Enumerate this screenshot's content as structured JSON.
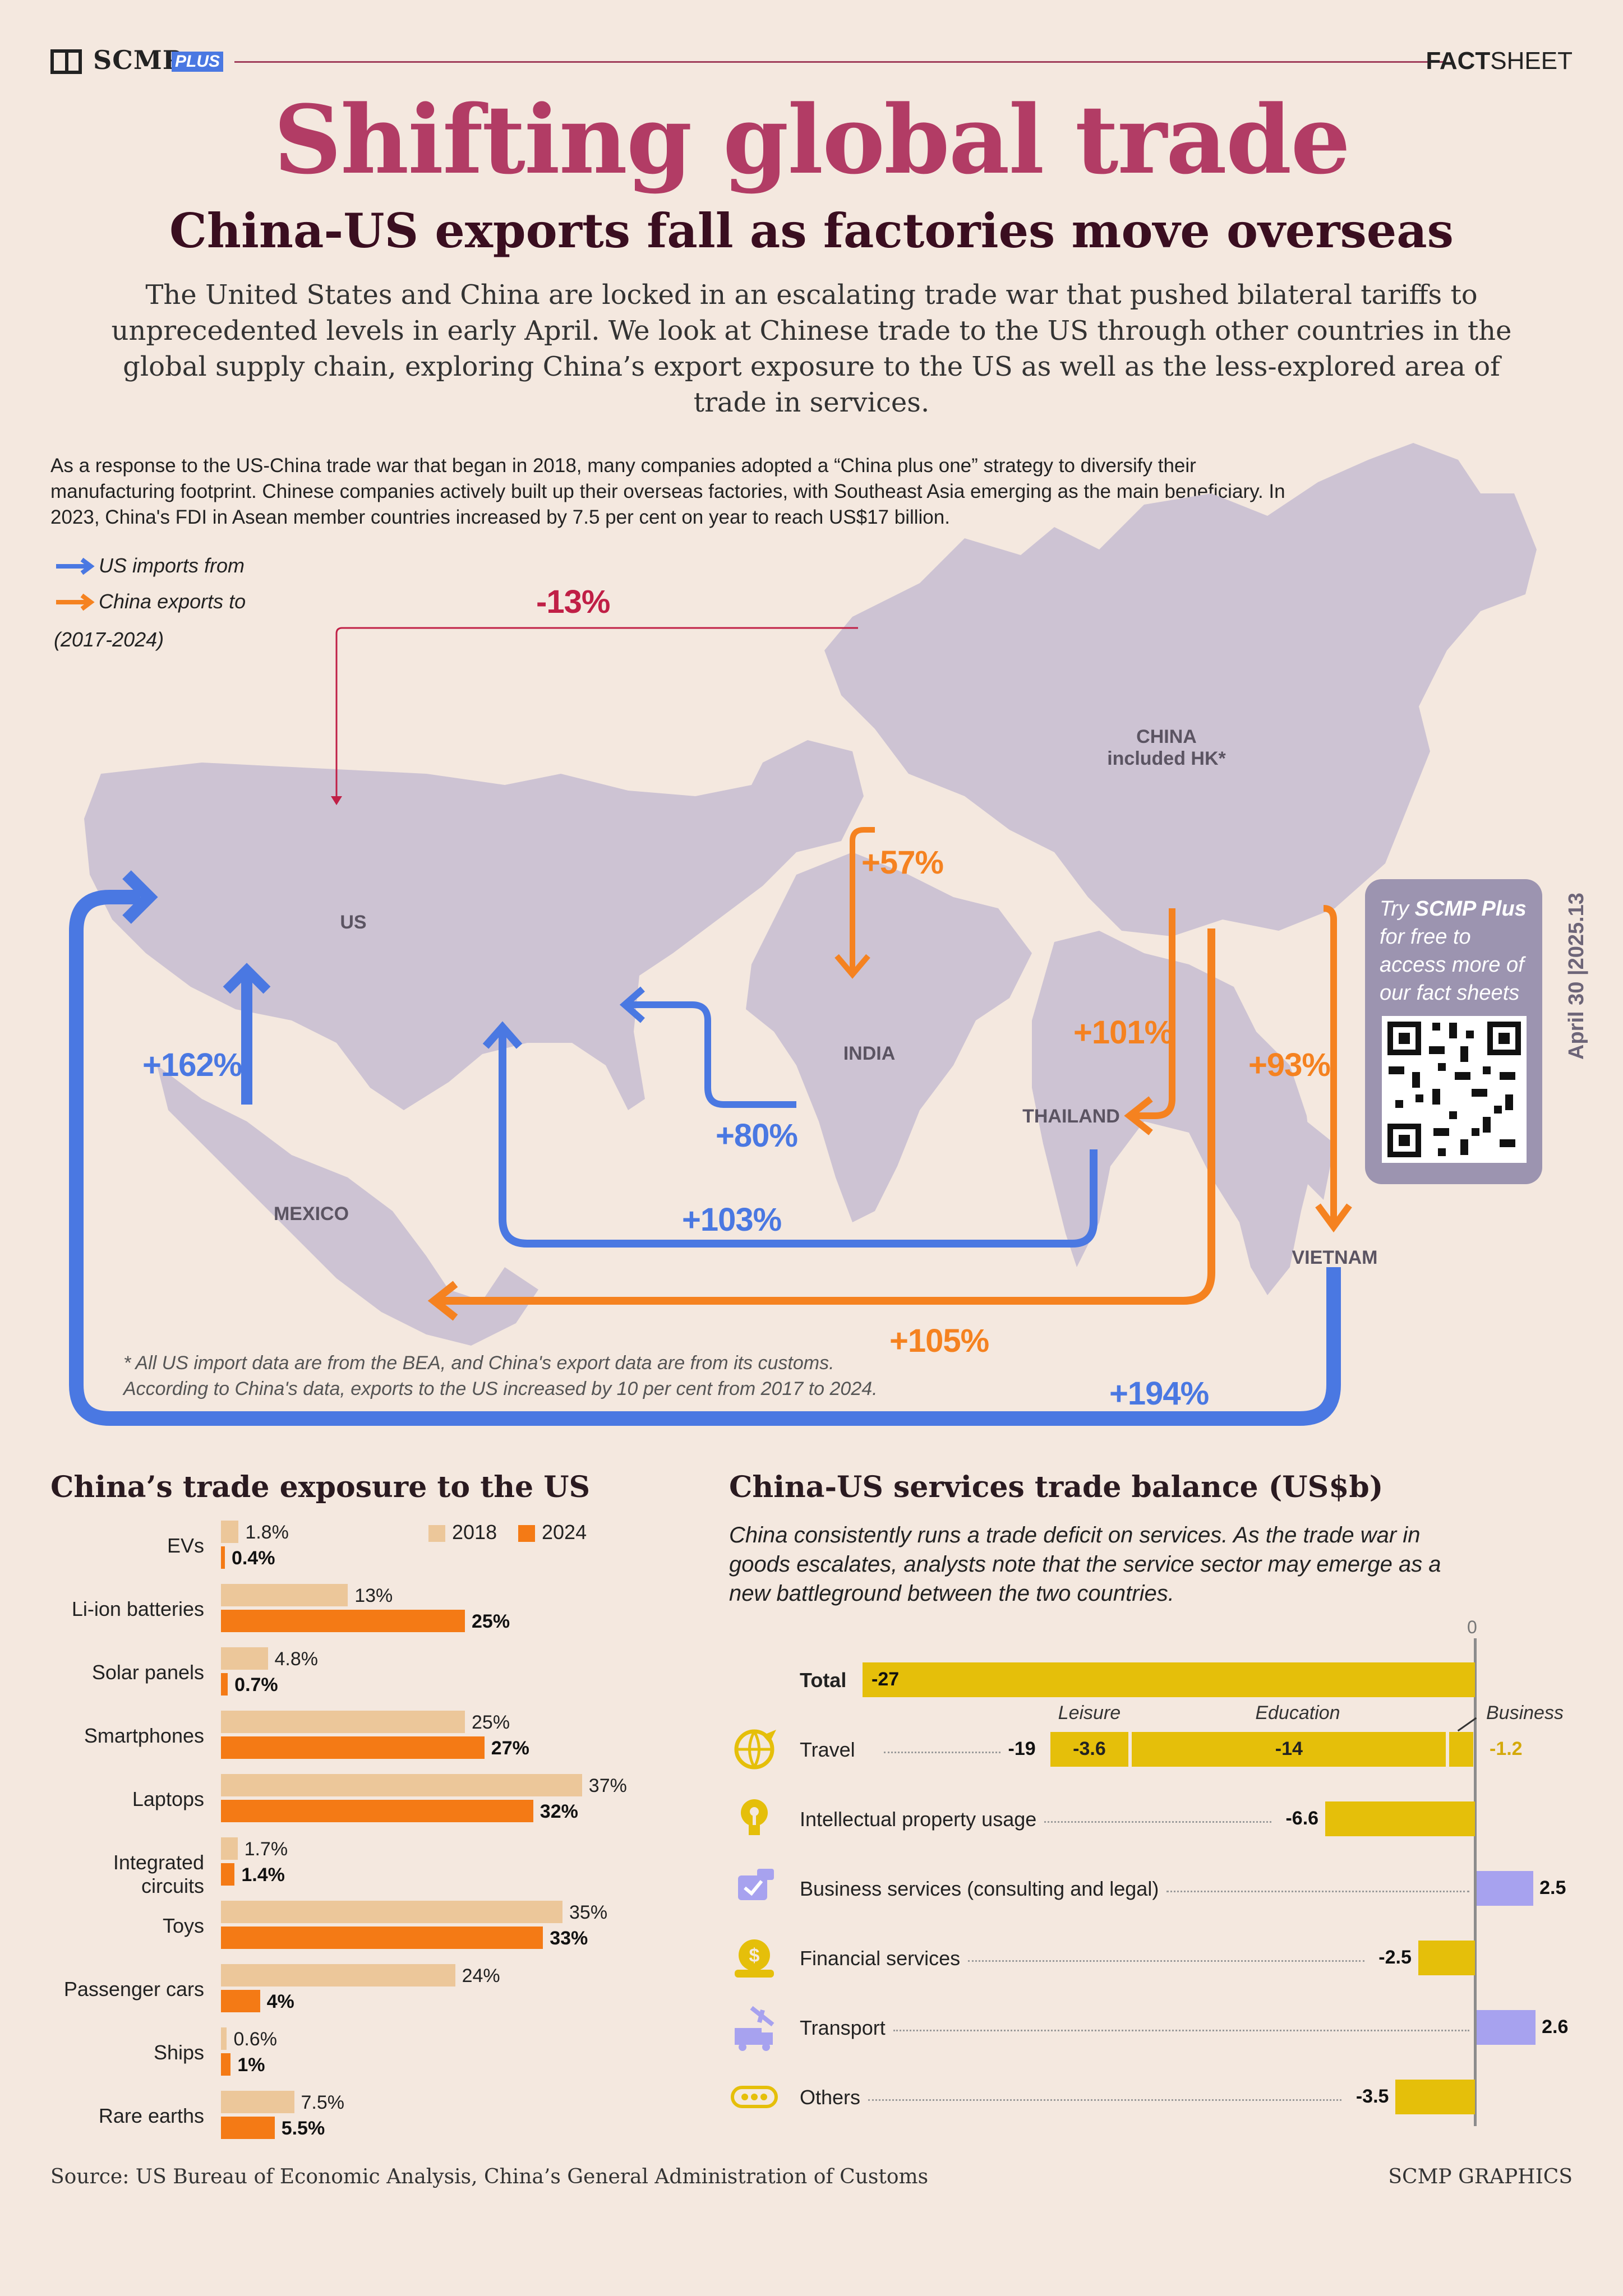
{
  "header": {
    "brand": "SCMP",
    "brand_plus": "PLUS",
    "factsheet_bold": "FACT",
    "factsheet_rest": "SHEET"
  },
  "title": "Shifting global trade",
  "subtitle": "China-US exports fall as factories move overseas",
  "intro": "The United States and China are locked in an escalating trade war that pushed bilateral tariffs to unprecedented levels in early April. We look at Chinese trade to the US through other countries in the global supply chain, exploring China’s export exposure to the US as well as the less-explored area of trade in services.",
  "map": {
    "description": "As a response to the US-China trade war that began in 2018, many companies adopted a “China plus one” strategy to diversify their manufacturing footprint. Chinese companies actively built up their overseas factories, with Southeast Asia emerging as the main beneficiary. In 2023, China's FDI in Asean member countries increased by 7.5 per cent on year to reach US$17 billion.",
    "legend": {
      "us_imports": "US imports from",
      "china_exports": "China exports to",
      "period": "(2017-2024)"
    },
    "countries": {
      "china_line1": "CHINA",
      "china_line2": "included HK*",
      "us": "US",
      "india": "INDIA",
      "thailand": "THAILAND",
      "mexico": "MEXICO",
      "vietnam": "VIETNAM"
    },
    "flows": {
      "china_to_us": "-13%",
      "china_to_india": "+57%",
      "china_to_thailand": "+101%",
      "china_to_vietnam": "+93%",
      "china_to_mexico": "+105%",
      "us_from_mexico": "+162%",
      "us_from_india": "+80%",
      "us_from_thailand": "+103%",
      "us_from_vietnam": "+194%"
    },
    "footnote_1": "* All US import data are from the BEA, and China's export data are from its customs.",
    "footnote_2": "According to China's data, exports to the US increased by 10 per cent from 2017 to 2024.",
    "colors": {
      "us_imports": "#4a78e2",
      "china_exports": "#f58220",
      "china_us": "#c01f46",
      "land": "#cdc3d3"
    }
  },
  "promo": {
    "try": "Try",
    "brand": "SCMP Plus",
    "text": "for free to access more of our fact sheets",
    "date": "April 30 |2025.13"
  },
  "chart_data": [
    {
      "type": "bar",
      "title": "China’s trade exposure to the US",
      "categories": [
        "EVs",
        "Li-ion batteries",
        "Solar panels",
        "Smartphones",
        "Laptops",
        "Integrated circuits",
        "Toys",
        "Passenger cars",
        "Ships",
        "Rare earths"
      ],
      "series": [
        {
          "name": "2018",
          "values": [
            1.8,
            13,
            4.8,
            25,
            37,
            1.7,
            35,
            24,
            0.6,
            7.5
          ],
          "labels": [
            "1.8%",
            "13%",
            "4.8%",
            "25%",
            "37%",
            "1.7%",
            "35%",
            "24%",
            "0.6%",
            "7.5%"
          ],
          "color": "#ecc79a"
        },
        {
          "name": "2024",
          "values": [
            0.4,
            25,
            0.7,
            27,
            32,
            1.4,
            33,
            4,
            1,
            5.5
          ],
          "labels": [
            "0.4%",
            "25%",
            "0.7%",
            "27%",
            "32%",
            "1.4%",
            "33%",
            "4%",
            "1%",
            "5.5%"
          ],
          "color": "#f47a15"
        }
      ],
      "xlim": [
        0,
        40
      ]
    },
    {
      "type": "bar",
      "title": "China-US services trade balance (US$b)",
      "description": "China consistently runs a trade deficit on services. As the trade war in goods escalates, analysts note that the service sector may emerge as a new battleground between the two countries.",
      "zero_label": "0",
      "categories": [
        "Total",
        "Travel",
        "Intellectual property usage",
        "Business services (consulting and legal)",
        "Financial services",
        "Transport",
        "Others"
      ],
      "values": [
        -27,
        -19,
        -6.6,
        2.5,
        -2.5,
        2.6,
        -3.5
      ],
      "labels": [
        "-27",
        "-19",
        "-6.6",
        "2.5",
        "-2.5",
        "2.6",
        "-3.5"
      ],
      "travel_breakdown": {
        "segments": [
          {
            "name": "Leisure",
            "value": -3.6,
            "label": "-3.6"
          },
          {
            "name": "Education",
            "value": -14,
            "label": "-14"
          },
          {
            "name": "Business",
            "value": -1.2,
            "label": "-1.2"
          }
        ]
      },
      "icons": [
        "",
        "plane-globe-icon",
        "lightbulb-key-icon",
        "checklist-chat-icon",
        "money-gear-icon",
        "truck-plane-icon",
        "dots-icon"
      ],
      "xlim": [
        -27,
        2.6
      ],
      "colors": {
        "negative": "#e5bf0a",
        "positive": "#a7a2ef"
      }
    }
  ],
  "source": "Source: US Bureau of Economic Analysis, China’s General Administration of Customs",
  "credit": "SCMP GRAPHICS"
}
